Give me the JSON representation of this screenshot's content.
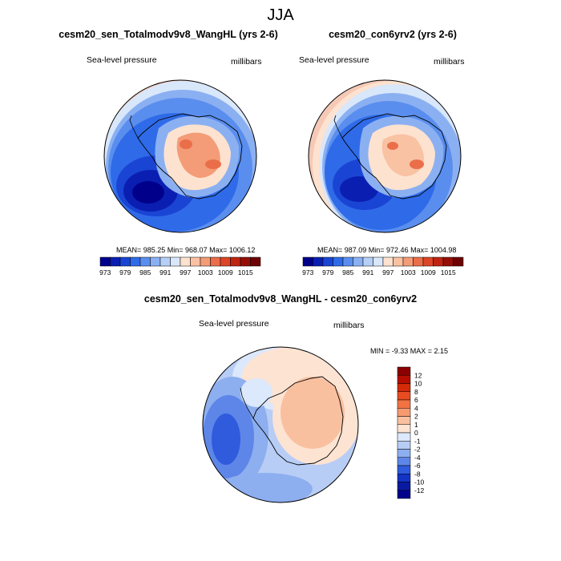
{
  "title": "JJA",
  "panels": [
    {
      "title": "cesm20_sen_Totalmodv9v8_WangHL (yrs 2-6)",
      "left_label": "Sea-level pressure",
      "right_label": "millibars",
      "stats": "MEAN= 985.25  Min= 968.07  Max= 1006.12"
    },
    {
      "title": "cesm20_con6yrv2 (yrs 2-6)",
      "left_label": "Sea-level pressure",
      "right_label": "millibars",
      "stats": "MEAN= 987.09  Min= 972.46  Max= 1004.98"
    },
    {
      "title": "cesm20_sen_Totalmodv9v8_WangHL - cesm20_con6yrv2",
      "left_label": "Sea-level pressure",
      "right_label": "millibars",
      "stats": "MIN =  -9.33 MAX =   2.15"
    }
  ],
  "abs_colorbar": {
    "labels": [
      "973",
      "979",
      "985",
      "991",
      "997",
      "1003",
      "1009",
      "1015"
    ],
    "colors": [
      "#00008b",
      "#0a1fb2",
      "#1a45d4",
      "#2f6be8",
      "#5a8eee",
      "#8bb0f2",
      "#b6cff6",
      "#d9e7fb",
      "#fde2cf",
      "#f9c2a3",
      "#f39c77",
      "#ea6e4a",
      "#dc4528",
      "#bf2412",
      "#960f07",
      "#6e0202"
    ]
  },
  "diff_colorbar": {
    "labels": [
      "12",
      "10",
      "8",
      "6",
      "4",
      "2",
      "1",
      "0",
      "-1",
      "-2",
      "-4",
      "-6",
      "-8",
      "-10",
      "-12"
    ],
    "colors": [
      "#8b0000",
      "#b50e00",
      "#d42a08",
      "#e84c20",
      "#f27242",
      "#f79a70",
      "#f9c0a0",
      "#fde3d2",
      "#dce8fb",
      "#b7cdf5",
      "#8daeef",
      "#5d86e8",
      "#2f5bdc",
      "#1233c4",
      "#0a1aa0",
      "#00008b"
    ]
  }
}
